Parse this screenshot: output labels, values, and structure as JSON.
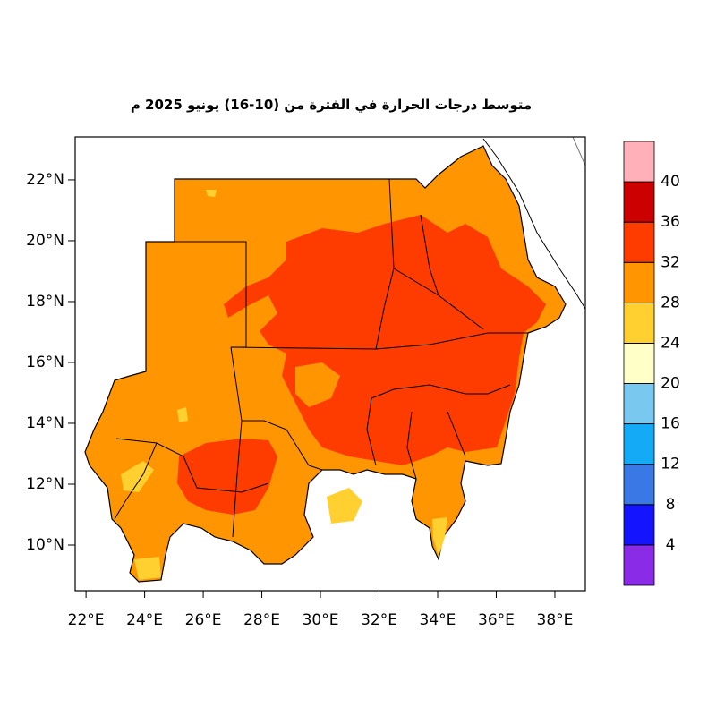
{
  "title": "متوسط درجات الحرارة في الفترة من (10-16) يونيو 2025 م",
  "map": {
    "xlim": [
      21.63,
      39.04
    ],
    "ylim": [
      8.5,
      23.41
    ],
    "xticks": [
      {
        "value": 22,
        "label": "22°E"
      },
      {
        "value": 24,
        "label": "24°E"
      },
      {
        "value": 26,
        "label": "26°E"
      },
      {
        "value": 28,
        "label": "28°E"
      },
      {
        "value": 30,
        "label": "30°E"
      },
      {
        "value": 32,
        "label": "32°E"
      },
      {
        "value": 34,
        "label": "34°E"
      },
      {
        "value": 36,
        "label": "36°E"
      },
      {
        "value": 38,
        "label": "38°E"
      }
    ],
    "yticks": [
      {
        "value": 10,
        "label": "10°N"
      },
      {
        "value": 12,
        "label": "12°N"
      },
      {
        "value": 14,
        "label": "14°N"
      },
      {
        "value": 16,
        "label": "16°N"
      },
      {
        "value": 18,
        "label": "18°N"
      },
      {
        "value": 20,
        "label": "20°N"
      },
      {
        "value": 22,
        "label": "22°N"
      }
    ]
  },
  "colorbar": {
    "lim": [
      0,
      44
    ],
    "ticks": [
      4,
      8,
      12,
      16,
      20,
      24,
      28,
      32,
      36,
      40
    ],
    "colors": [
      "#8a2be8",
      "#1414ff",
      "#3a78e6",
      "#14aaf5",
      "#78c8f0",
      "#ffffc8",
      "#ffd030",
      "#ff9500",
      "#ff3c00",
      "#cc0000",
      "#ffb0b8"
    ]
  }
}
